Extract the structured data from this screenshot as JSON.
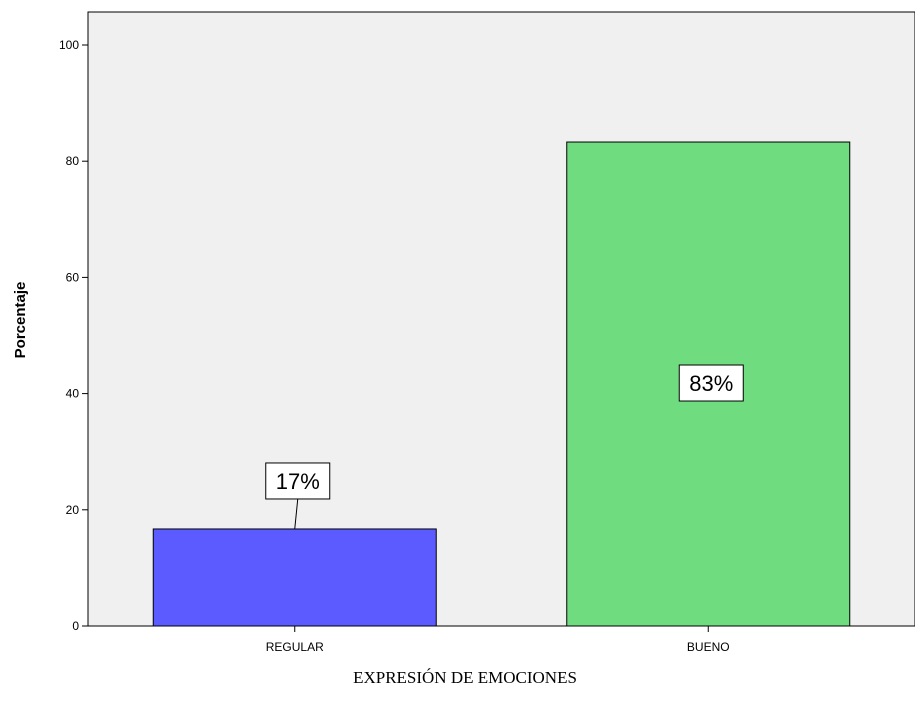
{
  "chart_data": {
    "type": "bar",
    "categories": [
      "REGULAR",
      "BUENO"
    ],
    "values": [
      16.7,
      83.3
    ],
    "data_labels": [
      "17%",
      "83%"
    ],
    "colors": [
      "#5b5bff",
      "#6fdc7f"
    ],
    "xlabel": "EXPRESIÓN DE EMOCIONES",
    "ylabel": "Porcentaje",
    "ylim": [
      0,
      100
    ],
    "yticks": [
      "0",
      "20",
      "40",
      "60",
      "80",
      "100"
    ],
    "plot_background": "#f0f0f0",
    "grid": false
  }
}
